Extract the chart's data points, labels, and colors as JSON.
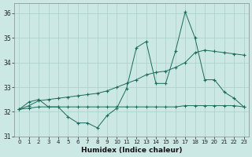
{
  "xlabel": "Humidex (Indice chaleur)",
  "bg_color": "#cce8e4",
  "grid_color": "#aacfcb",
  "line_color": "#1a6b5a",
  "x": [
    0,
    1,
    2,
    3,
    4,
    5,
    6,
    7,
    8,
    9,
    10,
    11,
    12,
    13,
    14,
    15,
    16,
    17,
    18,
    19,
    20,
    21,
    22,
    23
  ],
  "y_main": [
    32.1,
    32.4,
    32.5,
    32.2,
    32.2,
    31.8,
    31.55,
    31.55,
    31.35,
    31.85,
    32.15,
    32.95,
    34.6,
    34.85,
    33.15,
    33.15,
    34.45,
    36.05,
    35.0,
    33.3,
    33.3,
    32.8,
    32.55,
    32.2
  ],
  "y_upper": [
    32.1,
    32.25,
    32.45,
    32.5,
    32.55,
    32.6,
    32.65,
    32.7,
    32.75,
    32.85,
    33.0,
    33.15,
    33.3,
    33.5,
    33.6,
    33.65,
    33.8,
    34.0,
    34.4,
    34.5,
    34.45,
    34.4,
    34.35,
    34.3
  ],
  "y_lower": [
    32.1,
    32.15,
    32.2,
    32.2,
    32.2,
    32.2,
    32.2,
    32.2,
    32.2,
    32.2,
    32.2,
    32.2,
    32.2,
    32.2,
    32.2,
    32.2,
    32.2,
    32.25,
    32.25,
    32.25,
    32.25,
    32.25,
    32.25,
    32.2
  ],
  "ylim": [
    31.0,
    36.4
  ],
  "yticks": [
    31,
    32,
    33,
    34,
    35,
    36
  ],
  "xticks": [
    0,
    1,
    2,
    3,
    4,
    5,
    6,
    7,
    8,
    9,
    10,
    11,
    12,
    13,
    14,
    15,
    16,
    17,
    18,
    19,
    20,
    21,
    22,
    23
  ],
  "xlim": [
    -0.5,
    23.5
  ]
}
